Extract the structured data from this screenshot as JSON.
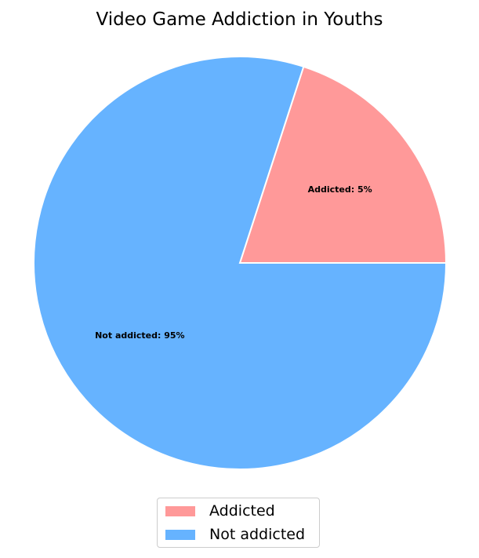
{
  "chart_data": {
    "type": "pie",
    "title": "Video Game Addiction in Youths",
    "labels": [
      "Addicted",
      "Not addicted"
    ],
    "values": [
      5,
      95
    ],
    "slice_labels": [
      "Addicted: 5%",
      "Not addicted: 95%"
    ],
    "colors": [
      "#ff9999",
      "#66b3ff"
    ],
    "legend_position": "bottom-center"
  }
}
